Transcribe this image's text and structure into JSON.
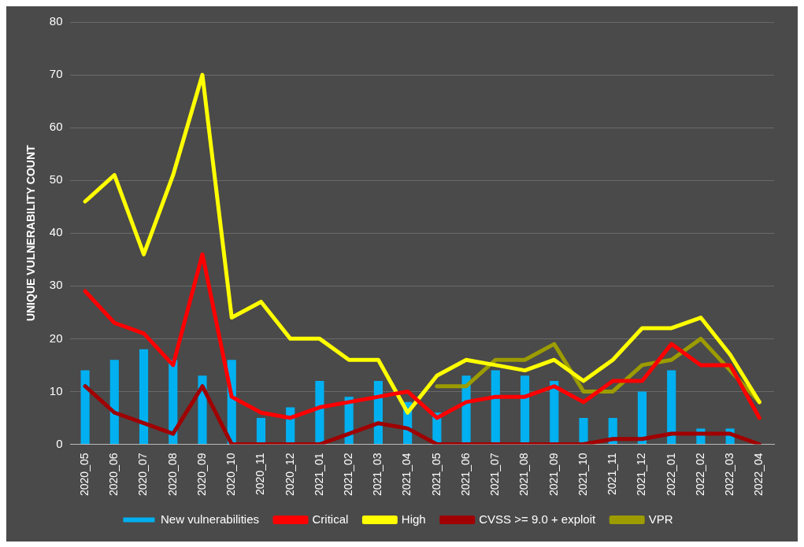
{
  "chart_data": {
    "type": "bar",
    "ylabel": "UNIQUE VULNERABILITY COUNT",
    "categories": [
      "2020_05",
      "2020_06",
      "2020_07",
      "2020_08",
      "2020_09",
      "2020_10",
      "2020_11",
      "2020_12",
      "2021_01",
      "2021_02",
      "2021_03",
      "2021_04",
      "2021_05",
      "2021_06",
      "2021_07",
      "2021_08",
      "2021_09",
      "2021_10",
      "2021_11",
      "2021_12",
      "2022_01",
      "2022_02",
      "2022_03",
      "2022_04"
    ],
    "series": [
      {
        "name": "New vulnerabilities",
        "color": "#00b0f0",
        "values": [
          14,
          16,
          18,
          16,
          13,
          16,
          5,
          7,
          12,
          9,
          12,
          8,
          6,
          13,
          14,
          13,
          12,
          5,
          5,
          10,
          14,
          3,
          3,
          0
        ]
      },
      {
        "name": "Critical",
        "type": "line",
        "color": "#ff0000",
        "values": [
          29,
          23,
          21,
          15,
          36,
          9,
          6,
          5,
          7,
          8,
          9,
          10,
          5,
          8,
          9,
          9,
          11,
          8,
          12,
          12,
          19,
          15,
          15,
          5
        ]
      },
      {
        "name": "High",
        "type": "line",
        "color": "#ffff00",
        "values": [
          46,
          51,
          36,
          51,
          70,
          24,
          27,
          20,
          20,
          16,
          16,
          6,
          13,
          16,
          15,
          14,
          16,
          12,
          16,
          22,
          22,
          24,
          17,
          8
        ]
      },
      {
        "name": "CVSS >= 9.0 + exploit",
        "type": "line",
        "color": "#a00000",
        "values": [
          11,
          6,
          4,
          2,
          11,
          0,
          0,
          0,
          0,
          2,
          4,
          3,
          0,
          0,
          0,
          0,
          0,
          0,
          1,
          1,
          2,
          2,
          2,
          0
        ]
      },
      {
        "name": "VPR",
        "type": "line",
        "color": "#9c9c00",
        "values": [
          null,
          null,
          null,
          null,
          null,
          null,
          null,
          null,
          null,
          null,
          null,
          null,
          11,
          11,
          16,
          16,
          19,
          10,
          10,
          15,
          16,
          20,
          14,
          8
        ]
      }
    ],
    "ylim": [
      0,
      80
    ],
    "yticks": [
      0,
      10,
      20,
      30,
      40,
      50,
      60,
      70,
      80
    ],
    "grid": "y",
    "legend": "bottom",
    "marker": "none",
    "line_style": "solid"
  }
}
